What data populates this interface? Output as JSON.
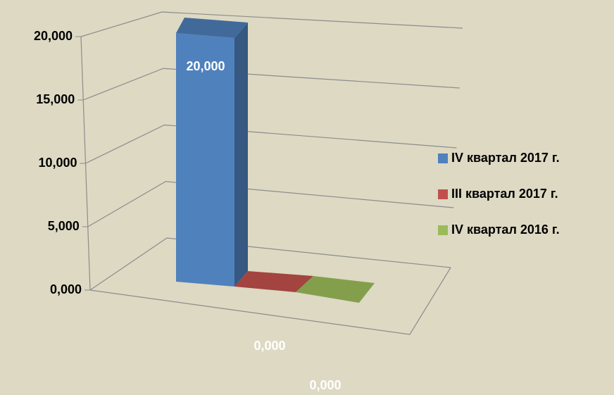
{
  "chart_data": {
    "type": "bar3d",
    "categories": [
      null
    ],
    "series": [
      {
        "name": "IV квартал 2017 г.",
        "color": "#4f81bd",
        "values": [
          20
        ],
        "value_labels": [
          "20,000"
        ]
      },
      {
        "name": "III квартал 2017 г.",
        "color": "#c0504d",
        "values": [
          0
        ],
        "value_labels": [
          "0,000"
        ]
      },
      {
        "name": "IV квартал 2016 г.",
        "color": "#9bbb59",
        "values": [
          0
        ],
        "value_labels": [
          "0,000"
        ]
      }
    ],
    "ylim": [
      0,
      20
    ],
    "yticks": [
      {
        "value": 0,
        "label": "0,000"
      },
      {
        "value": 5,
        "label": "5,000"
      },
      {
        "value": 10,
        "label": "10,000"
      },
      {
        "value": 15,
        "label": "15,000"
      },
      {
        "value": 20,
        "label": "20,000"
      }
    ],
    "grid": true,
    "legend": "right"
  }
}
